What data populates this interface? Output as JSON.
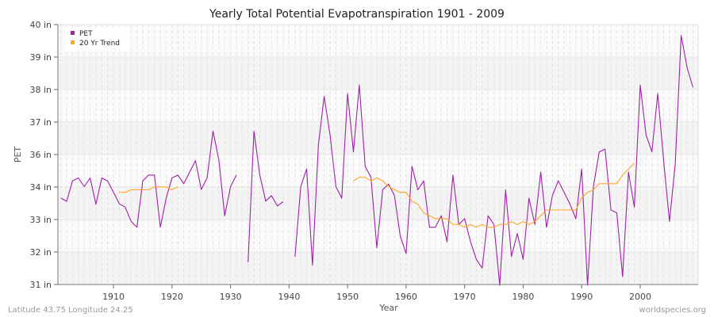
{
  "chart_data": {
    "type": "line",
    "title": "Yearly Total Potential Evapotranspiration 1901 - 2009",
    "xlabel": "Year",
    "ylabel": "PET",
    "xlim": [
      1900.5,
      2009.9
    ],
    "ylim": [
      31,
      40
    ],
    "y_ticks": [
      {
        "value": 31,
        "label": "31 in"
      },
      {
        "value": 32.125,
        "label": "32 in"
      },
      {
        "value": 33.25,
        "label": "33 in"
      },
      {
        "value": 34.375,
        "label": "34 in"
      },
      {
        "value": 35.5,
        "label": "36 in"
      },
      {
        "value": 36.625,
        "label": "37 in"
      },
      {
        "value": 37.75,
        "label": "38 in"
      },
      {
        "value": 38.875,
        "label": "39 in"
      },
      {
        "value": 40,
        "label": "40 in"
      }
    ],
    "x_ticks": [
      1910,
      1920,
      1930,
      1940,
      1950,
      1960,
      1970,
      1980,
      1990,
      2000
    ],
    "grid": true,
    "legend_position": "top-left",
    "start_year": 1901,
    "series": [
      {
        "name": "PET",
        "color": "#a020a8",
        "values": [
          33.99,
          33.88,
          34.59,
          34.69,
          34.39,
          34.69,
          33.78,
          34.69,
          34.58,
          34.19,
          33.79,
          33.68,
          33.19,
          32.98,
          34.59,
          34.79,
          34.79,
          32.98,
          33.99,
          34.69,
          34.79,
          34.49,
          34.89,
          35.29,
          34.29,
          34.69,
          36.31,
          35.31,
          33.38,
          34.39,
          34.79,
          null,
          31.77,
          36.31,
          34.79,
          33.89,
          34.08,
          33.72,
          33.87,
          null,
          31.96,
          34.39,
          35.0,
          31.67,
          35.82,
          37.51,
          36.19,
          34.39,
          33.99,
          37.61,
          35.59,
          37.91,
          35.09,
          34.71,
          32.27,
          34.28,
          34.48,
          34.08,
          32.68,
          32.07,
          35.09,
          34.28,
          34.59,
          32.98,
          32.98,
          33.38,
          32.48,
          34.79,
          33.08,
          33.28,
          32.48,
          31.87,
          31.57,
          33.38,
          33.08,
          30.97,
          34.28,
          31.97,
          32.77,
          31.87,
          33.99,
          33.08,
          34.89,
          32.98,
          34.08,
          34.59,
          34.19,
          33.78,
          33.28,
          35.0,
          30.97,
          34.39,
          35.59,
          35.69,
          33.58,
          33.48,
          31.27,
          34.89,
          33.68,
          37.91,
          36.19,
          35.59,
          37.61,
          35.29,
          33.18,
          35.2,
          39.62,
          38.52,
          37.83
        ]
      },
      {
        "name": "20 Yr Trend",
        "color": "#ffa726",
        "values": [
          null,
          null,
          null,
          null,
          null,
          null,
          null,
          null,
          null,
          null,
          34.19,
          34.19,
          34.28,
          34.28,
          34.28,
          34.28,
          34.38,
          34.38,
          34.38,
          34.28,
          34.38,
          null,
          null,
          null,
          null,
          null,
          null,
          null,
          null,
          null,
          null,
          null,
          null,
          null,
          null,
          null,
          null,
          null,
          null,
          null,
          null,
          null,
          null,
          null,
          null,
          null,
          null,
          null,
          null,
          null,
          34.59,
          34.71,
          34.71,
          34.59,
          34.69,
          34.59,
          34.39,
          34.28,
          34.19,
          34.19,
          33.88,
          33.78,
          33.48,
          33.38,
          33.28,
          33.28,
          33.28,
          33.08,
          33.08,
          32.98,
          33.08,
          32.98,
          33.08,
          32.98,
          32.98,
          33.08,
          33.08,
          33.18,
          33.08,
          33.18,
          33.08,
          33.18,
          33.38,
          33.58,
          33.58,
          33.58,
          33.58,
          33.58,
          33.58,
          33.99,
          34.19,
          34.28,
          34.49,
          34.49,
          34.49,
          34.49,
          34.79,
          35.0,
          35.2,
          null,
          null,
          null,
          null,
          null,
          null,
          null,
          null,
          null,
          null
        ]
      }
    ]
  },
  "footer": {
    "left": "Latitude 43.75 Longitude 24.25",
    "right": "worldspecies.org"
  }
}
